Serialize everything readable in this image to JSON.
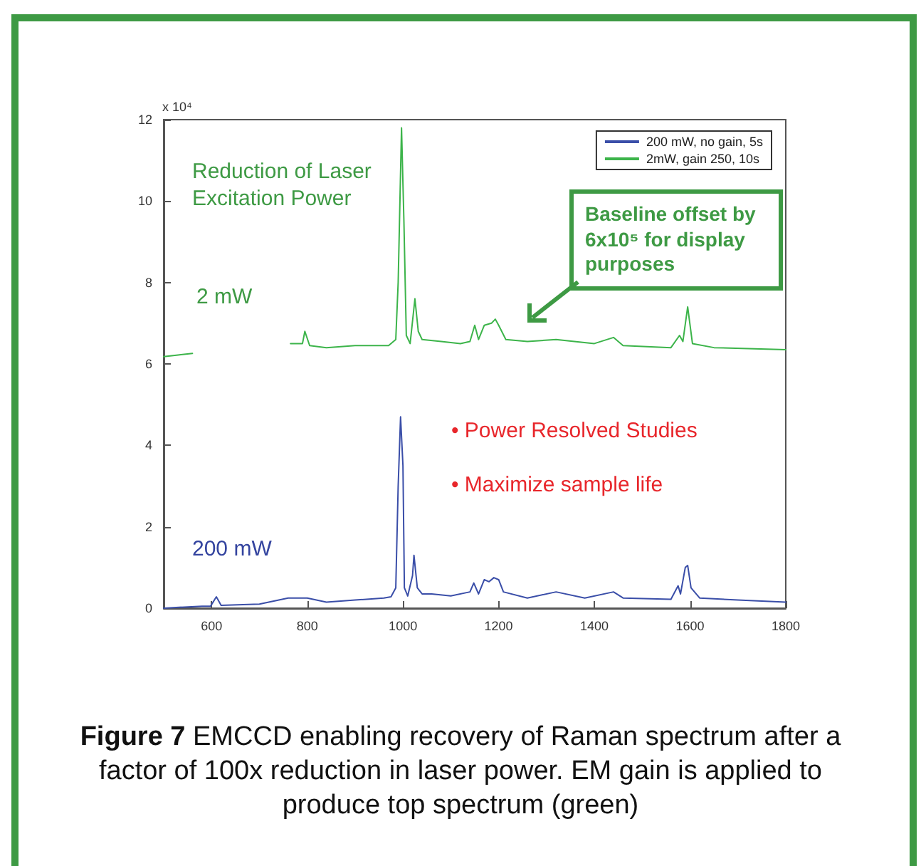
{
  "chart_data": {
    "type": "line",
    "xlim": [
      500,
      1800
    ],
    "ylim": [
      0,
      12
    ],
    "xticks": [
      600,
      800,
      1000,
      1200,
      1400,
      1600,
      1800
    ],
    "yticks": [
      0,
      2,
      4,
      6,
      8,
      10,
      12
    ],
    "grid": false,
    "legend": "top right",
    "marker": "none",
    "line_style": "solid",
    "series": [
      {
        "name": "200 mW, no gain, 5s",
        "color": "#3a4ea8",
        "x": [
          500,
          580,
          598,
          610,
          620,
          700,
          760,
          780,
          800,
          840,
          900,
          960,
          975,
          985,
          990,
          995,
          1000,
          1003,
          1010,
          1020,
          1023,
          1030,
          1040,
          1060,
          1100,
          1140,
          1148,
          1158,
          1170,
          1180,
          1190,
          1200,
          1210,
          1260,
          1320,
          1380,
          1440,
          1460,
          1560,
          1575,
          1580,
          1590,
          1595,
          1602,
          1620,
          1700,
          1800
        ],
        "values": [
          0,
          0.05,
          0.05,
          0.28,
          0.07,
          0.1,
          0.25,
          0.25,
          0.25,
          0.15,
          0.2,
          0.25,
          0.28,
          0.5,
          3,
          4.7,
          3.5,
          0.5,
          0.3,
          0.8,
          1.3,
          0.5,
          0.35,
          0.35,
          0.3,
          0.4,
          0.62,
          0.35,
          0.7,
          0.65,
          0.75,
          0.7,
          0.4,
          0.25,
          0.4,
          0.25,
          0.4,
          0.25,
          0.22,
          0.55,
          0.35,
          1,
          1.05,
          0.5,
          0.25,
          0.2,
          0.15
        ]
      },
      {
        "name": "2mW, gain 250, 10s",
        "color": "#3cb44a",
        "x": [
          500,
          530,
          560,
          562,
          765,
          790,
          795,
          805,
          840,
          900,
          970,
          985,
          990,
          997,
          1002,
          1007,
          1015,
          1025,
          1032,
          1040,
          1080,
          1120,
          1140,
          1150,
          1158,
          1170,
          1185,
          1193,
          1200,
          1215,
          1260,
          1320,
          1400,
          1440,
          1460,
          1560,
          1578,
          1585,
          1595,
          1605,
          1650,
          1800
        ],
        "values": [
          6.18,
          6.22,
          6.26,
          null,
          6.5,
          6.5,
          6.8,
          6.45,
          6.4,
          6.45,
          6.45,
          6.6,
          8,
          11.8,
          9.5,
          6.7,
          6.5,
          7.6,
          6.8,
          6.6,
          6.55,
          6.5,
          6.55,
          6.95,
          6.6,
          6.95,
          7,
          7.1,
          6.95,
          6.6,
          6.55,
          6.6,
          6.5,
          6.65,
          6.45,
          6.4,
          6.7,
          6.55,
          7.4,
          6.5,
          6.4,
          6.35
        ]
      }
    ],
    "annotations": [
      "x 10⁴",
      "Reduction of Laser Excitation Power",
      "2 mW",
      "200 mW",
      "Baseline offset by 6x10⁵ for display purposes",
      "• Power Resolved Studies",
      "• Maximize sample life",
      "Figure 7 EMCCD enabling recovery of Raman spectrum after a factor of 100x reduction in laser power. EM gain is applied to produce top spectrum (green)"
    ]
  }
}
